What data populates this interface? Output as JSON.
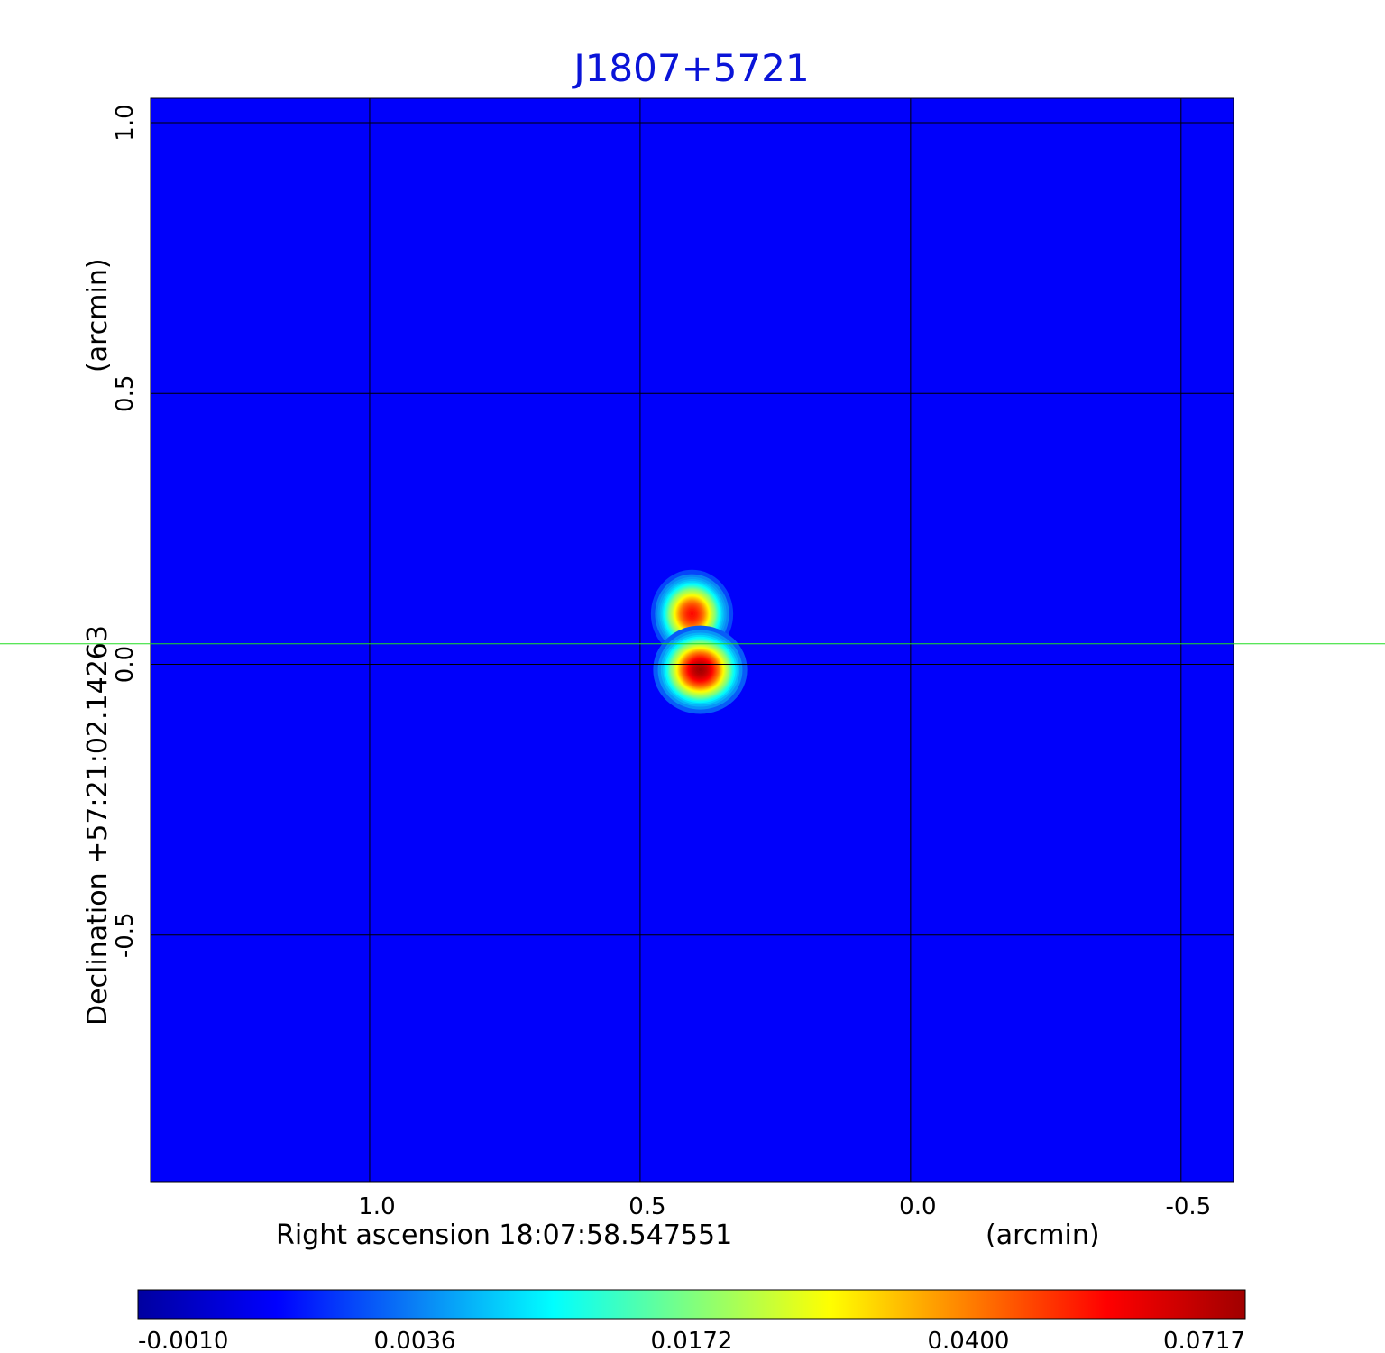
{
  "chart_data": {
    "type": "heatmap",
    "title": "J1807+5721",
    "xlabel": "Right ascension  18:07:58.547551",
    "xunit": "(arcmin)",
    "ylabel": "Declination  +57:21:02.14263",
    "yunit": "(arcmin)",
    "x_ticks": [
      1.0,
      0.5,
      0.0,
      -0.5
    ],
    "x_tick_labels": [
      "1.0",
      "0.5",
      "0.0",
      "-0.5"
    ],
    "y_ticks": [
      1.0,
      0.5,
      0.0,
      -0.5
    ],
    "y_tick_labels": [
      "1.0",
      "0.5",
      "0.0",
      "-0.5"
    ],
    "xlim": [
      1.405,
      -0.597
    ],
    "ylim": [
      -0.955,
      1.045
    ],
    "grid": true,
    "crosshair": {
      "x": 0.404,
      "y": 0.038
    },
    "colorbar": {
      "tick_labels": [
        "-0.0010",
        "0.0036",
        "0.0172",
        "0.0400",
        "0.0717"
      ],
      "colors": [
        "#0000a0",
        "#0000ff",
        "#0a7ff5",
        "#00ffff",
        "#7fff7f",
        "#ffff00",
        "#ff7f00",
        "#ff0000",
        "#a00000"
      ],
      "background_value": 0.0012
    },
    "sources": [
      {
        "x": 0.404,
        "y": 0.093,
        "peak": 0.055,
        "sigma_x": 0.028,
        "sigma_y": 0.03
      },
      {
        "x": 0.389,
        "y": -0.01,
        "peak": 0.0717,
        "sigma_x": 0.032,
        "sigma_y": 0.03
      }
    ],
    "colors": {
      "title": "#0a14d8",
      "grid": "#000000",
      "crosshair": "#22dd22",
      "frame": "#000000"
    }
  }
}
